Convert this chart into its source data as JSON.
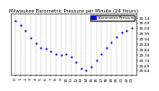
{
  "title": "Milwaukee Barometric Pressure per Minute (24 Hours)",
  "ylim": [
    29.6,
    30.18
  ],
  "xlim": [
    -1,
    24
  ],
  "ytick_vals": [
    30.14,
    30.09,
    30.04,
    29.99,
    29.94,
    29.89,
    29.84,
    29.79,
    29.74,
    29.69,
    29.64
  ],
  "ytick_labels": [
    "30.14",
    "30.09",
    "30.04",
    "29.99",
    "29.94",
    "29.89",
    "29.84",
    "29.79",
    "29.74",
    "29.69",
    "29.64"
  ],
  "data_x": [
    0,
    1,
    2,
    3,
    4,
    5,
    6,
    7,
    8,
    9,
    10,
    11,
    12,
    13,
    14,
    15,
    16,
    17,
    18,
    19,
    20,
    21,
    22,
    23
  ],
  "data_y": [
    30.11,
    30.07,
    30.02,
    29.95,
    29.9,
    29.86,
    29.85,
    29.82,
    29.8,
    29.79,
    29.8,
    29.77,
    29.72,
    29.66,
    29.64,
    29.68,
    29.74,
    29.8,
    29.86,
    29.91,
    29.96,
    30.0,
    30.02,
    30.04
  ],
  "dot_color": "#0000ff",
  "dot_size": 2.5,
  "bg_color": "#ffffff",
  "grid_color": "#999999",
  "legend_label": "Barometric Pressure",
  "legend_color": "#0000ff",
  "tick_fontsize": 3.2,
  "title_fontsize": 3.8
}
